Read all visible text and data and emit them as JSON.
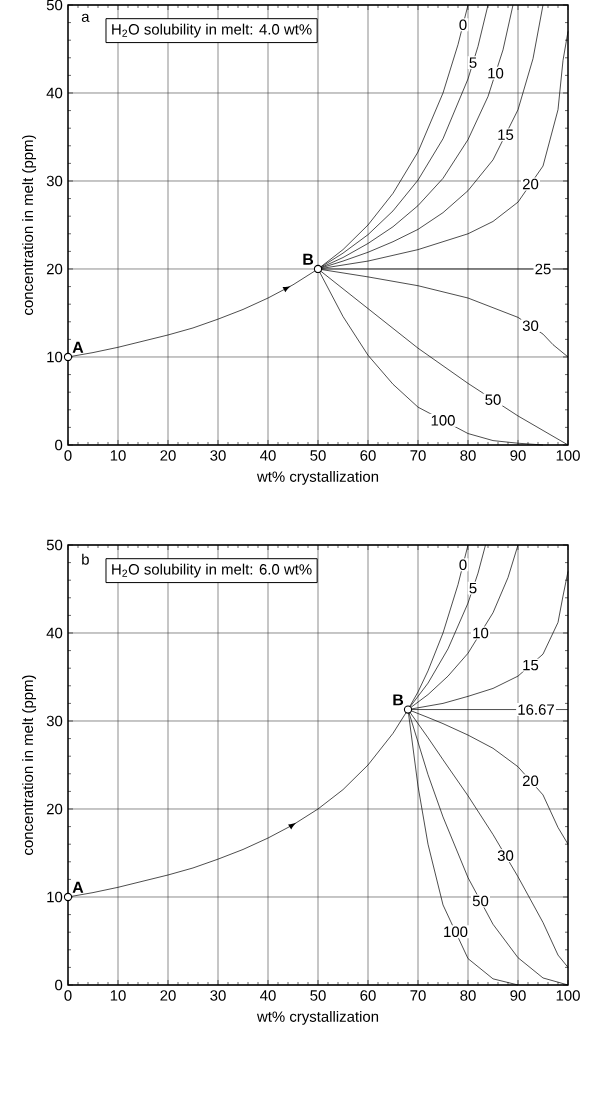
{
  "chart_data": [
    {
      "type": "line",
      "title": "a",
      "xlabel": "wt% crystallization",
      "ylabel": "concentration in melt (ppm)",
      "xlim": [
        0,
        100
      ],
      "ylim": [
        0,
        50
      ],
      "xticks": [
        0,
        10,
        20,
        30,
        40,
        50,
        60,
        70,
        80,
        90,
        100
      ],
      "yticks": [
        0,
        10,
        20,
        30,
        40,
        50
      ],
      "grid": true,
      "legend": "right",
      "line_style": "solid",
      "marker": "none",
      "annotations": [
        "H$_{2}$O solubility in melt: 4.0 wt%",
        {
          "text": "A",
          "x": 0,
          "y": 10
        },
        {
          "text": "B",
          "x": 50,
          "y": 20
        }
      ],
      "series": [
        {
          "color": "#000000",
          "x": [
            0,
            5,
            10,
            15,
            20,
            25,
            30,
            35,
            40,
            45,
            50
          ],
          "values": [
            10,
            10.5,
            11.1,
            11.8,
            12.5,
            13.3,
            14.3,
            15.4,
            16.7,
            18.2,
            20
          ]
        },
        {
          "name": "0",
          "color": "#000000",
          "x": [
            50,
            55,
            60,
            65,
            70,
            75,
            78,
            80
          ],
          "values": [
            20,
            22.2,
            25,
            28.6,
            33.3,
            40,
            45.5,
            50
          ]
        },
        {
          "name": "5",
          "color": "#000000",
          "x": [
            50,
            55,
            60,
            65,
            70,
            75,
            80,
            82,
            84
          ],
          "values": [
            20,
            21.8,
            23.9,
            26.6,
            30.1,
            34.8,
            41.6,
            45.3,
            50
          ]
        },
        {
          "name": "10",
          "color": "#000000",
          "x": [
            50,
            55,
            60,
            65,
            70,
            75,
            80,
            84,
            87,
            89
          ],
          "values": [
            20,
            21.3,
            22.9,
            24.8,
            27.2,
            30.3,
            34.7,
            39.6,
            44.9,
            50
          ]
        },
        {
          "name": "15",
          "color": "#000000",
          "x": [
            50,
            55,
            60,
            65,
            70,
            75,
            80,
            85,
            90,
            93,
            95
          ],
          "values": [
            20,
            20.9,
            21.9,
            23.1,
            24.5,
            26.4,
            28.9,
            32.4,
            38.1,
            43.9,
            50
          ]
        },
        {
          "name": "20",
          "color": "#000000",
          "x": [
            50,
            60,
            70,
            80,
            85,
            90,
            95,
            98,
            99,
            100
          ],
          "values": [
            20,
            20.9,
            22.2,
            24,
            25.4,
            27.6,
            31.7,
            38.1,
            43.7,
            47
          ]
        },
        {
          "name": "25",
          "color": "#000000",
          "x": [
            50,
            100
          ],
          "values": [
            20,
            20
          ]
        },
        {
          "name": "30",
          "color": "#000000",
          "x": [
            50,
            60,
            70,
            80,
            90,
            95,
            97,
            100
          ],
          "values": [
            20,
            19.1,
            18.1,
            16.7,
            14.5,
            12.6,
            11.4,
            10
          ]
        },
        {
          "name": "50",
          "color": "#000000",
          "x": [
            50,
            60,
            70,
            80,
            90,
            100
          ],
          "values": [
            20,
            15.5,
            11,
            7,
            3.3,
            0
          ]
        },
        {
          "name": "100",
          "color": "#000000",
          "x": [
            50,
            55,
            60,
            65,
            70,
            80,
            85,
            90,
            95
          ],
          "values": [
            20,
            14.6,
            10.2,
            6.9,
            4.3,
            1.3,
            0.5,
            0.2,
            0
          ]
        },
        {
          "type": "scatter",
          "marker": "circle",
          "color": "#000000",
          "x": [
            0,
            50
          ],
          "values": [
            10,
            20
          ]
        }
      ]
    },
    {
      "type": "line",
      "title": "b",
      "xlabel": "wt% crystallization",
      "ylabel": "concentration in melt (ppm)",
      "xlim": [
        0,
        100
      ],
      "ylim": [
        0,
        50
      ],
      "xticks": [
        0,
        10,
        20,
        30,
        40,
        50,
        60,
        70,
        80,
        90,
        100
      ],
      "yticks": [
        0,
        10,
        20,
        30,
        40,
        50
      ],
      "grid": true,
      "legend": "right",
      "line_style": "solid",
      "marker": "none",
      "annotations": [
        "H$_{2}$O solubility in melt: 6.0 wt%",
        {
          "text": "A",
          "x": 0,
          "y": 10
        },
        {
          "text": "B",
          "x": 68,
          "y": 31.3
        }
      ],
      "series": [
        {
          "color": "#000000",
          "x": [
            0,
            5,
            10,
            15,
            20,
            25,
            30,
            35,
            40,
            45,
            50,
            55,
            60,
            65,
            68
          ],
          "values": [
            10,
            10.5,
            11.1,
            11.8,
            12.5,
            13.3,
            14.3,
            15.4,
            16.7,
            18.2,
            20,
            22.2,
            25,
            28.6,
            31.3
          ]
        },
        {
          "name": "0",
          "color": "#000000",
          "x": [
            68,
            70,
            72,
            75,
            78,
            80
          ],
          "values": [
            31.3,
            33.3,
            35.7,
            40,
            45.5,
            50
          ]
        },
        {
          "name": "5",
          "color": "#000000",
          "x": [
            68,
            72,
            76,
            80,
            82,
            83.5
          ],
          "values": [
            31.3,
            34.3,
            38.2,
            43.4,
            46.8,
            50
          ]
        },
        {
          "name": "10",
          "color": "#000000",
          "x": [
            68,
            72,
            76,
            80,
            85,
            88,
            90
          ],
          "values": [
            31.3,
            33,
            35.1,
            37.7,
            42.3,
            46.3,
            50
          ]
        },
        {
          "name": "15",
          "color": "#000000",
          "x": [
            68,
            75,
            80,
            85,
            90,
            95,
            98,
            99,
            100
          ],
          "values": [
            31.3,
            32,
            32.8,
            33.7,
            35.1,
            37.6,
            41.2,
            44.2,
            47
          ]
        },
        {
          "name": "16.67",
          "color": "#000000",
          "x": [
            68,
            100
          ],
          "values": [
            31.3,
            31.3
          ]
        },
        {
          "name": "20",
          "color": "#000000",
          "x": [
            68,
            72,
            75,
            80,
            85,
            90,
            95,
            98,
            100
          ],
          "values": [
            31.3,
            30.4,
            29.7,
            28.4,
            26.9,
            24.8,
            21.6,
            17.9,
            16
          ]
        },
        {
          "name": "30",
          "color": "#000000",
          "x": [
            68,
            72,
            75,
            80,
            85,
            90,
            95,
            98,
            100
          ],
          "values": [
            31.3,
            28.1,
            25.6,
            21.5,
            17.1,
            12.3,
            7.1,
            3.4,
            2
          ]
        },
        {
          "name": "50",
          "color": "#000000",
          "x": [
            68,
            72,
            75,
            80,
            85,
            90,
            95,
            100
          ],
          "values": [
            31.3,
            23.9,
            19.1,
            12.2,
            6.9,
            3.1,
            0.8,
            0
          ]
        },
        {
          "name": "100",
          "color": "#000000",
          "x": [
            68,
            70,
            72,
            75,
            80,
            85,
            90
          ],
          "values": [
            31.3,
            22.6,
            16,
            9.1,
            3,
            0.7,
            0
          ]
        },
        {
          "type": "scatter",
          "marker": "circle",
          "color": "#000000",
          "x": [
            0,
            68
          ],
          "values": [
            10,
            31.3
          ]
        }
      ]
    }
  ]
}
